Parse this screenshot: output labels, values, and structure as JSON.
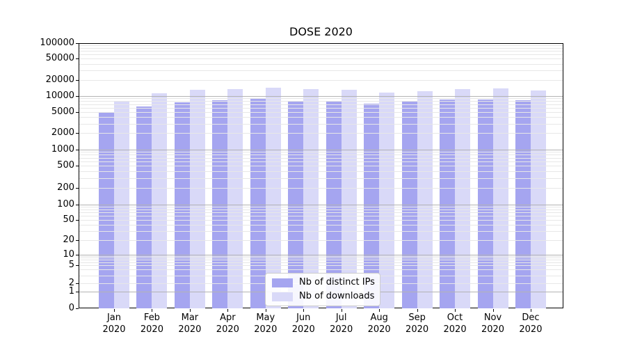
{
  "chart_data": {
    "type": "bar",
    "title": "DOSE 2020",
    "categories": [
      "Jan 2020",
      "Feb 2020",
      "Mar 2020",
      "Apr 2020",
      "May 2020",
      "Jun 2020",
      "Jul 2020",
      "Aug 2020",
      "Sep 2020",
      "Oct 2020",
      "Nov 2020",
      "Dec 2020"
    ],
    "series": [
      {
        "name": "Nb of distinct IPs",
        "key": "distinct-ips",
        "color": "#a5a5f0",
        "values": [
          5000,
          6400,
          7600,
          8400,
          9100,
          8200,
          8200,
          7200,
          8200,
          8600,
          8600,
          8400
        ]
      },
      {
        "name": "Nb of downloads",
        "key": "downloads",
        "color": "#d9d9f8",
        "values": [
          8100,
          11300,
          13100,
          13600,
          14400,
          13500,
          13200,
          11600,
          12300,
          13600,
          13900,
          12800
        ]
      }
    ],
    "yscale": "symlog",
    "ylim": [
      0,
      100000
    ],
    "y_tick_labels": [
      "0",
      "1",
      "2",
      "5",
      "10",
      "20",
      "50",
      "100",
      "200",
      "500",
      "1000",
      "2000",
      "5000",
      "10000",
      "20000",
      "50000",
      "100000"
    ],
    "y_tick_values": [
      0,
      1,
      2,
      5,
      10,
      20,
      50,
      100,
      200,
      500,
      1000,
      2000,
      5000,
      10000,
      20000,
      50000,
      100000
    ],
    "grid": "horizontal, minor and major",
    "legend_position": "lower center",
    "xlabel": "",
    "ylabel": ""
  }
}
